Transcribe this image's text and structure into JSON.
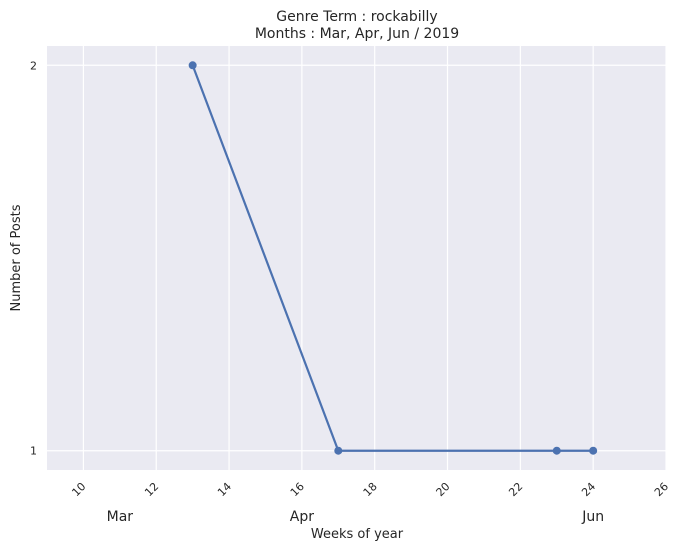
{
  "chart_data": {
    "type": "line",
    "title": "Genre Term : rockabilly",
    "subtitle": "Months : Mar, Apr, Jun / 2019",
    "xlabel": "Weeks of year",
    "ylabel": "Number of Posts",
    "xlim": [
      9,
      26
    ],
    "ylim": [
      0.95,
      2.05
    ],
    "x_ticks": [
      10,
      12,
      14,
      16,
      18,
      20,
      22,
      24,
      26
    ],
    "y_ticks": [
      1,
      2
    ],
    "month_labels": [
      {
        "label": "Mar",
        "x": 11
      },
      {
        "label": "Apr",
        "x": 16
      },
      {
        "label": "Jun",
        "x": 24
      }
    ],
    "series": [
      {
        "x": [
          13,
          17,
          23,
          24
        ],
        "y": [
          2,
          1,
          1,
          1
        ],
        "color": "#4C72B0"
      }
    ],
    "grid": true,
    "background": "#EAEAF2"
  }
}
